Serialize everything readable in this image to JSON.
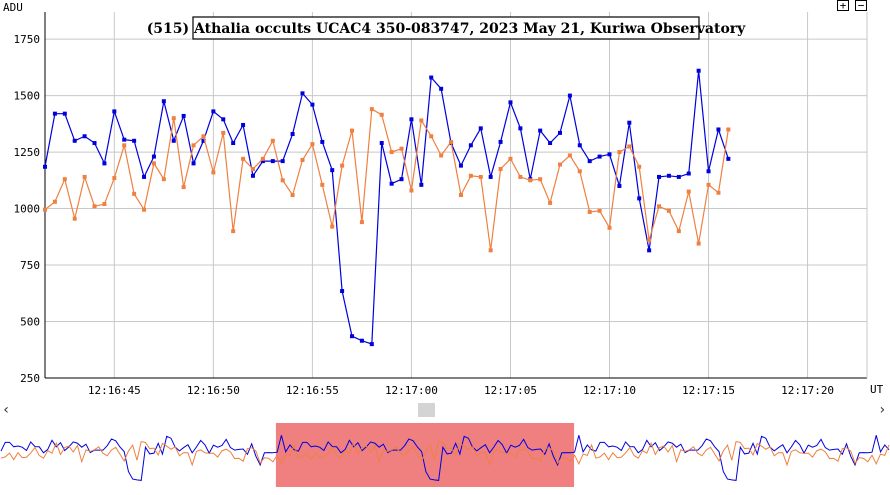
{
  "chart_data": {
    "type": "line",
    "title": "(515) Athalia occults UCAC4 350-083747, 2023 May 21, Kuriwa Observatory",
    "ylabel": "ADU",
    "xlabel": "UT",
    "ylim": [
      250,
      1870
    ],
    "xlim": [
      0,
      83
    ],
    "y_ticks": [
      250,
      500,
      750,
      1000,
      1250,
      1500,
      1750
    ],
    "x_ticks": [
      {
        "at": 7,
        "label": "12:16:45"
      },
      {
        "at": 17,
        "label": "12:16:50"
      },
      {
        "at": 27,
        "label": "12:16:55"
      },
      {
        "at": 37,
        "label": "12:17:00"
      },
      {
        "at": 47,
        "label": "12:17:05"
      },
      {
        "at": 57,
        "label": "12:17:10"
      },
      {
        "at": 67,
        "label": "12:17:15"
      },
      {
        "at": 77,
        "label": "12:17:20"
      }
    ],
    "grid": true,
    "series": [
      {
        "color": "#0000dd",
        "values": [
          1185,
          1420,
          1420,
          1300,
          1320,
          1290,
          1200,
          1430,
          1305,
          1300,
          1140,
          1230,
          1475,
          1300,
          1410,
          1200,
          1300,
          1430,
          1395,
          1290,
          1370,
          1145,
          1210,
          1210,
          1210,
          1330,
          1510,
          1460,
          1295,
          1170,
          635,
          435,
          415,
          400,
          1290,
          1110,
          1130,
          1395,
          1105,
          1580,
          1530,
          1290,
          1190,
          1280,
          1355,
          1140,
          1295,
          1470,
          1355,
          1130,
          1345,
          1290,
          1335,
          1500,
          1280,
          1210,
          1230,
          1240,
          1100,
          1380,
          1045,
          815,
          1140,
          1145,
          1140,
          1155,
          1610,
          1165,
          1350,
          1220
        ]
      },
      {
        "color": "#ef8040",
        "values": [
          995,
          1030,
          1130,
          955,
          1140,
          1010,
          1020,
          1135,
          1280,
          1065,
          995,
          1200,
          1130,
          1400,
          1095,
          1280,
          1320,
          1160,
          1335,
          900,
          1220,
          1175,
          1220,
          1300,
          1125,
          1060,
          1215,
          1285,
          1105,
          920,
          1190,
          1345,
          940,
          1440,
          1415,
          1250,
          1265,
          1080,
          1390,
          1320,
          1235,
          1295,
          1060,
          1145,
          1140,
          815,
          1175,
          1220,
          1140,
          1125,
          1130,
          1025,
          1195,
          1235,
          1165,
          985,
          990,
          915,
          1250,
          1275,
          1185,
          860,
          1010,
          990,
          900,
          1075,
          845,
          1105,
          1070,
          1350
        ]
      }
    ]
  },
  "navigator": {
    "left_arrow": "‹",
    "right_arrow": "›",
    "selection_color": "#f08080",
    "selection_start": 0.31,
    "selection_end": 0.645
  },
  "controls": {
    "zoom_in": "+",
    "zoom_out": "−"
  }
}
